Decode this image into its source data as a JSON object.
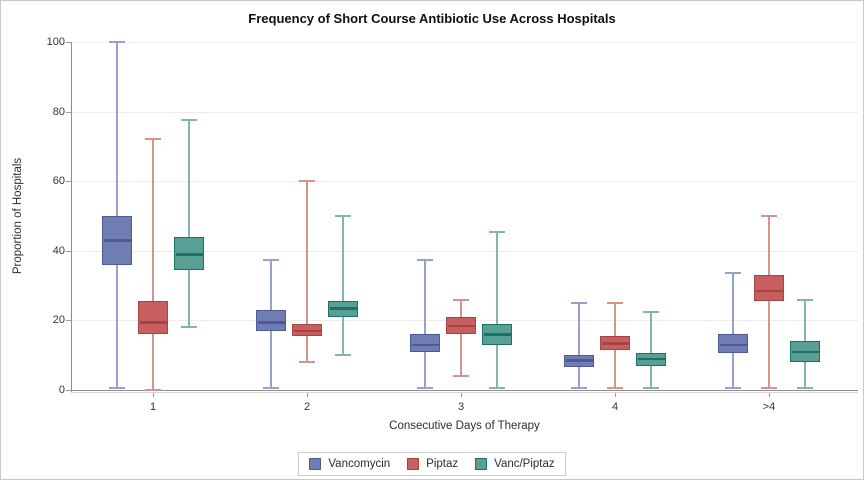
{
  "figure": {
    "title": "Frequency of Short Course Antibiotic Use Across Hospitals"
  },
  "chart_data": {
    "type": "boxplot",
    "title": "Frequency of Short Course Antibiotic Use Across Hospitals",
    "xlabel": "Consecutive Days of Therapy",
    "ylabel": "Proportion of Hospitals",
    "ylim": [
      0,
      100
    ],
    "yticks": [
      0,
      20,
      40,
      60,
      80,
      100
    ],
    "grid": "horizontal",
    "categories": [
      "1",
      "2",
      "3",
      "4",
      ">4"
    ],
    "legend_position": "bottom-center",
    "series": [
      {
        "name": "Vancomycin",
        "colors": {
          "fill": "#6f7db2",
          "border": "#4d5a97",
          "whisker": "#96a1ca"
        },
        "boxes": [
          {
            "min": 0.5,
            "q1": 36,
            "median": 43,
            "q3": 50,
            "max": 100
          },
          {
            "min": 0.5,
            "q1": 17,
            "median": 19.5,
            "q3": 23,
            "max": 37.5
          },
          {
            "min": 0.5,
            "q1": 11,
            "median": 13,
            "q3": 16,
            "max": 37.5
          },
          {
            "min": 0.5,
            "q1": 6.5,
            "median": 8.5,
            "q3": 10,
            "max": 25
          },
          {
            "min": 0.5,
            "q1": 10.5,
            "median": 13,
            "q3": 16,
            "max": 33.5
          }
        ]
      },
      {
        "name": "Piptaz",
        "colors": {
          "fill": "#c85e5d",
          "border": "#a64444",
          "whisker": "#d49391"
        },
        "boxes": [
          {
            "min": 0,
            "q1": 16,
            "median": 19.5,
            "q3": 25.5,
            "max": 72
          },
          {
            "min": 8,
            "q1": 15.5,
            "median": 17,
            "q3": 19,
            "max": 60
          },
          {
            "min": 4,
            "q1": 16,
            "median": 18.5,
            "q3": 21,
            "max": 26
          },
          {
            "min": 0.5,
            "q1": 11.5,
            "median": 13.5,
            "q3": 15.5,
            "max": 25
          },
          {
            "min": 0.5,
            "q1": 25.5,
            "median": 28.5,
            "q3": 33,
            "max": 50
          }
        ]
      },
      {
        "name": "Vanc/Piptaz",
        "colors": {
          "fill": "#58a096",
          "border": "#1e6f66",
          "whisker": "#84b5ad"
        },
        "boxes": [
          {
            "min": 18,
            "q1": 34.5,
            "median": 39,
            "q3": 44,
            "max": 77.5
          },
          {
            "min": 10,
            "q1": 21,
            "median": 23.5,
            "q3": 25.5,
            "max": 50
          },
          {
            "min": 0.5,
            "q1": 13,
            "median": 16,
            "q3": 19,
            "max": 45.5
          },
          {
            "min": 0.5,
            "q1": 7,
            "median": 9,
            "q3": 10.5,
            "max": 22.5
          },
          {
            "min": 0.5,
            "q1": 8,
            "median": 11,
            "q3": 14,
            "max": 26
          }
        ]
      }
    ]
  }
}
